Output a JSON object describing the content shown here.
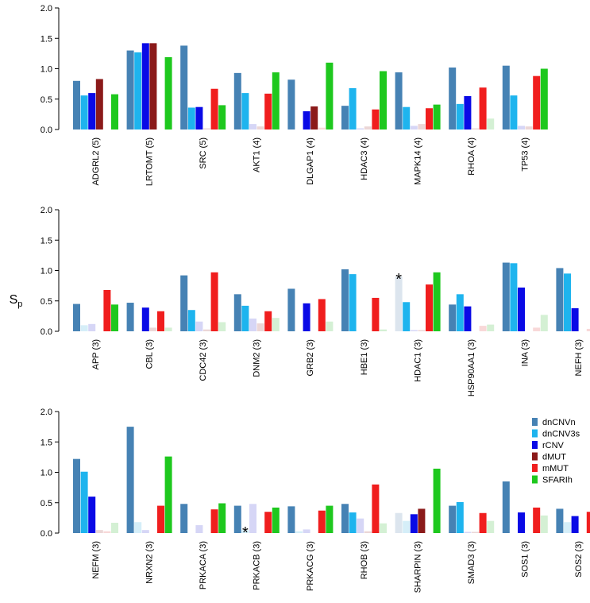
{
  "chart_data": {
    "type": "bar",
    "ylabel": "S",
    "ylabel_sub": "p",
    "ylim": [
      0,
      2.0
    ],
    "yticks": [
      "0.0",
      "0.5",
      "1.0",
      "1.5",
      "2.0"
    ],
    "series": [
      {
        "name": "dnCNVn",
        "color": "#4682B4",
        "faded": "#DCE5EE"
      },
      {
        "name": "dnCNV3s",
        "color": "#1EB4EE",
        "faded": "#D5EEF8"
      },
      {
        "name": "rCNV",
        "color": "#0A0AE6",
        "faded": "#D6D6F6"
      },
      {
        "name": "dMUT",
        "color": "#8B1A1A",
        "faded": "#EBD6D6"
      },
      {
        "name": "mMUT",
        "color": "#F01E1E",
        "faded": "#F8D8D8"
      },
      {
        "name": "SFARIh",
        "color": "#1EC81E",
        "faded": "#D4F0D4"
      }
    ],
    "legend_position": "right of bottom panel",
    "panels": [
      {
        "genes": [
          {
            "label": "ADGRL2 (5)",
            "values": [
              0.8,
              0.56,
              0.6,
              0.83,
              0.0,
              0.58
            ],
            "faded": [
              false,
              false,
              false,
              false,
              false,
              false
            ]
          },
          {
            "label": "LRTOMT (5)",
            "values": [
              1.3,
              1.27,
              1.42,
              1.42,
              0.0,
              1.19
            ],
            "faded": [
              false,
              false,
              false,
              false,
              false,
              false
            ]
          },
          {
            "label": "SRC (5)",
            "values": [
              1.38,
              0.36,
              0.37,
              0.02,
              0.67,
              0.4
            ],
            "faded": [
              false,
              false,
              false,
              true,
              false,
              false
            ]
          },
          {
            "label": "AKT1 (4)",
            "values": [
              0.93,
              0.6,
              0.09,
              0.05,
              0.59,
              0.94
            ],
            "faded": [
              false,
              false,
              true,
              true,
              false,
              false
            ]
          },
          {
            "label": "DLGAP1 (4)",
            "values": [
              0.82,
              0.0,
              0.3,
              0.38,
              0.03,
              1.1
            ],
            "faded": [
              false,
              false,
              false,
              false,
              true,
              false
            ]
          },
          {
            "label": "HDAC3 (4)",
            "values": [
              0.39,
              0.68,
              0.02,
              0.05,
              0.33,
              0.96
            ],
            "faded": [
              false,
              false,
              true,
              true,
              false,
              false
            ]
          },
          {
            "label": "MAPK14 (4)",
            "values": [
              0.94,
              0.37,
              0.06,
              0.09,
              0.35,
              0.41
            ],
            "faded": [
              false,
              false,
              true,
              true,
              false,
              false
            ]
          },
          {
            "label": "RHOA (4)",
            "values": [
              1.02,
              0.42,
              0.55,
              0.02,
              0.69,
              0.18
            ],
            "faded": [
              false,
              false,
              false,
              true,
              false,
              true
            ]
          },
          {
            "label": "TP53 (4)",
            "values": [
              1.05,
              0.56,
              0.06,
              0.05,
              0.88,
              1.0
            ],
            "faded": [
              false,
              false,
              true,
              true,
              false,
              false
            ]
          }
        ]
      },
      {
        "genes": [
          {
            "label": "APP (3)",
            "values": [
              0.45,
              0.1,
              0.12,
              0.0,
              0.68,
              0.44
            ],
            "faded": [
              false,
              true,
              true,
              false,
              false,
              false
            ]
          },
          {
            "label": "CBL (3)",
            "values": [
              0.47,
              0.0,
              0.39,
              0.06,
              0.33,
              0.06
            ],
            "faded": [
              false,
              false,
              false,
              true,
              false,
              true
            ]
          },
          {
            "label": "CDC42 (3)",
            "values": [
              0.92,
              0.35,
              0.16,
              0.03,
              0.97,
              0.15
            ],
            "faded": [
              false,
              false,
              true,
              true,
              false,
              true
            ]
          },
          {
            "label": "DNM2 (3)",
            "values": [
              0.61,
              0.42,
              0.21,
              0.13,
              0.33,
              0.22
            ],
            "faded": [
              false,
              false,
              true,
              true,
              false,
              true
            ]
          },
          {
            "label": "GRB2 (3)",
            "values": [
              0.7,
              0.0,
              0.46,
              0.0,
              0.53,
              0.16
            ],
            "faded": [
              false,
              false,
              false,
              false,
              false,
              true
            ]
          },
          {
            "label": "HBE1 (3)",
            "values": [
              1.02,
              0.94,
              0.0,
              0.0,
              0.55,
              0.03
            ],
            "faded": [
              false,
              false,
              false,
              false,
              false,
              true
            ]
          },
          {
            "label": "HDAC1 (3)",
            "values": [
              0.9,
              0.48,
              0.02,
              0.02,
              0.77,
              0.97
            ],
            "faded": [
              true,
              false,
              true,
              true,
              false,
              false
            ],
            "annotation": "*"
          },
          {
            "label": "HSP90AA1 (3)",
            "values": [
              0.44,
              0.61,
              0.41,
              0.0,
              0.09,
              0.11
            ],
            "faded": [
              false,
              false,
              false,
              false,
              true,
              true
            ]
          },
          {
            "label": "INA (3)",
            "values": [
              1.13,
              1.12,
              0.72,
              0.0,
              0.06,
              0.27
            ],
            "faded": [
              false,
              false,
              false,
              false,
              true,
              true
            ]
          },
          {
            "label": "NEFH (3)",
            "values": [
              1.04,
              0.95,
              0.38,
              0.0,
              0.04,
              0.16
            ],
            "faded": [
              false,
              false,
              false,
              false,
              true,
              true
            ]
          }
        ]
      },
      {
        "genes": [
          {
            "label": "NEFM (3)",
            "values": [
              1.22,
              1.01,
              0.6,
              0.05,
              0.03,
              0.17
            ],
            "faded": [
              false,
              false,
              false,
              true,
              true,
              true
            ]
          },
          {
            "label": "NRXN2 (3)",
            "values": [
              1.75,
              0.18,
              0.05,
              0.0,
              0.45,
              1.26
            ],
            "faded": [
              false,
              true,
              true,
              false,
              false,
              false
            ]
          },
          {
            "label": "PRKACA (3)",
            "values": [
              0.48,
              0.0,
              0.13,
              0.0,
              0.39,
              0.49
            ],
            "faded": [
              false,
              false,
              true,
              false,
              false,
              false
            ]
          },
          {
            "label": "PRKACB (3)",
            "values": [
              0.45,
              0.05,
              0.48,
              0.0,
              0.35,
              0.42
            ],
            "faded": [
              false,
              true,
              true,
              false,
              false,
              false
            ],
            "annotation": "*"
          },
          {
            "label": "PRKACG (3)",
            "values": [
              0.44,
              0.03,
              0.06,
              0.0,
              0.37,
              0.45
            ],
            "faded": [
              false,
              true,
              true,
              false,
              false,
              false
            ]
          },
          {
            "label": "RHOB (3)",
            "values": [
              0.48,
              0.34,
              0.24,
              0.03,
              0.8,
              0.16
            ],
            "faded": [
              false,
              false,
              true,
              true,
              false,
              true
            ]
          },
          {
            "label": "SHARPIN (3)",
            "values": [
              0.33,
              0.2,
              0.31,
              0.4,
              0.0,
              1.06
            ],
            "faded": [
              true,
              true,
              false,
              false,
              false,
              false
            ]
          },
          {
            "label": "SMAD3 (3)",
            "values": [
              0.45,
              0.51,
              0.02,
              0.02,
              0.33,
              0.2
            ],
            "faded": [
              false,
              false,
              true,
              true,
              false,
              true
            ]
          },
          {
            "label": "SOS1 (3)",
            "values": [
              0.85,
              0.0,
              0.34,
              0.0,
              0.42,
              0.29
            ],
            "faded": [
              false,
              false,
              false,
              false,
              false,
              true
            ]
          },
          {
            "label": "SOS2 (3)",
            "values": [
              0.4,
              0.18,
              0.28,
              0.0,
              0.35,
              0.08
            ],
            "faded": [
              false,
              true,
              false,
              false,
              false,
              true
            ]
          }
        ]
      }
    ]
  }
}
